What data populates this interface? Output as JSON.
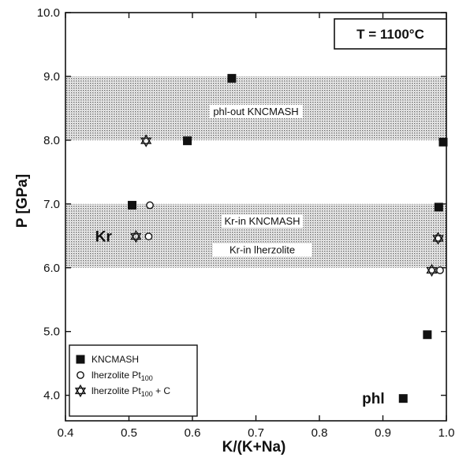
{
  "chart_data": {
    "type": "scatter",
    "title": "",
    "xlabel": "K/(K+Na)",
    "ylabel": "P [GPa]",
    "xlim": [
      0.4,
      1.0
    ],
    "ylim": [
      3.6,
      10.0
    ],
    "x_ticks": [
      0.4,
      0.5,
      0.6,
      0.7,
      0.8,
      0.9,
      1.0
    ],
    "x_tick_labels": [
      "0.4",
      "0.5",
      "0.6",
      "0.7",
      "0.8",
      "0.9",
      "1.0"
    ],
    "y_ticks": [
      4.0,
      5.0,
      6.0,
      7.0,
      8.0,
      9.0,
      10.0
    ],
    "y_tick_labels": [
      "4.0",
      "5.0",
      "6.0",
      "7.0",
      "8.0",
      "9.0",
      "10.0"
    ],
    "condition_label": "T = 1100°C",
    "bands": [
      {
        "y0": 8.0,
        "y1": 9.0,
        "labels": [
          {
            "text": "phl-out KNCMASH",
            "x": 0.7,
            "y": 8.42
          }
        ]
      },
      {
        "y0": 6.0,
        "y1": 7.0,
        "labels": [
          {
            "text": "Kr-in KNCMASH",
            "x": 0.71,
            "y": 6.7
          },
          {
            "text": "Kr-in lherzolite",
            "x": 0.71,
            "y": 6.25
          }
        ]
      }
    ],
    "annotations": [
      {
        "text": "Kr",
        "x": 0.46,
        "y": 6.5
      },
      {
        "text": "phl",
        "x": 0.885,
        "y": 3.96
      }
    ],
    "series": [
      {
        "name": "KNCMASH",
        "marker": "square",
        "points": [
          [
            0.662,
            8.97
          ],
          [
            0.592,
            7.99
          ],
          [
            0.505,
            6.98
          ],
          [
            0.995,
            7.97
          ],
          [
            0.988,
            6.95
          ],
          [
            0.97,
            4.95
          ],
          [
            0.932,
            3.95
          ]
        ]
      },
      {
        "name": "lherzolite Pt100",
        "marker": "circle",
        "points": [
          [
            0.533,
            6.98
          ],
          [
            0.531,
            6.49
          ],
          [
            0.988,
            6.46
          ],
          [
            0.99,
            5.96
          ]
        ]
      },
      {
        "name": "lherzolite Pt100 + C",
        "marker": "star",
        "points": [
          [
            0.527,
            7.99
          ],
          [
            0.511,
            6.49
          ],
          [
            0.987,
            6.46
          ],
          [
            0.977,
            5.96
          ]
        ]
      }
    ],
    "legend": {
      "position": "bottom-left",
      "entries": [
        {
          "marker": "square",
          "text": "KNCMASH",
          "sub": "",
          "suffix": ""
        },
        {
          "marker": "circle",
          "text": "lherzolite Pt",
          "sub": "100",
          "suffix": ""
        },
        {
          "marker": "star",
          "text": "lherzolite Pt",
          "sub": "100",
          "suffix": " + C"
        }
      ]
    },
    "grid": false
  }
}
